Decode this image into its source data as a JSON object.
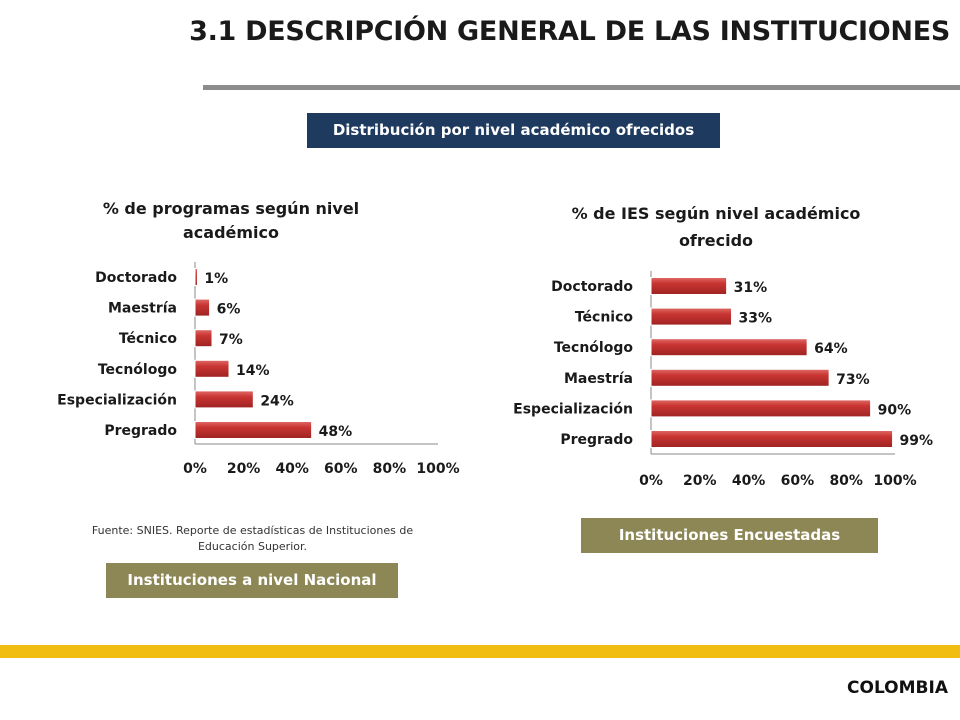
{
  "page": {
    "title": "3.1 DESCRIPCIÓN GENERAL DE LAS INSTITUCIONES",
    "section_banner": "Distribución por nivel académico ofrecidos",
    "source_note": "Fuente: SNIES. Reporte de estadísticas de Instituciones de Educación Superior.",
    "left_banner": "Instituciones a nivel Nacional",
    "right_banner": "Instituciones Encuestadas",
    "footer_label": "COLOMBIA"
  },
  "colors": {
    "title_rule": "#8c8c8c",
    "navy_banner": "#1f3a5f",
    "olive_banner": "#8d8756",
    "bar": "#c0302e",
    "footer_stripe": "#f0bd10"
  },
  "chart_data": [
    {
      "type": "bar",
      "orientation": "horizontal",
      "title": "% de programas según nivel académico",
      "title_lines": [
        "% de programas según nivel",
        "académico"
      ],
      "categories": [
        "Doctorado",
        "Maestría",
        "Técnico",
        "Tecnólogo",
        "Especialización",
        "Pregrado"
      ],
      "values": [
        1,
        6,
        7,
        14,
        24,
        48
      ],
      "value_labels": [
        "1%",
        "6%",
        "7%",
        "14%",
        "24%",
        "48%"
      ],
      "xlim": [
        0,
        100
      ],
      "xticks": [
        "0%",
        "20%",
        "40%",
        "60%",
        "80%",
        "100%"
      ],
      "grid": false,
      "legend": "none"
    },
    {
      "type": "bar",
      "orientation": "horizontal",
      "title": "% de IES según nivel académico ofrecido",
      "title_lines": [
        "% de IES según nivel académico",
        "ofrecido"
      ],
      "categories": [
        "Doctorado",
        "Técnico",
        "Tecnólogo",
        "Maestría",
        "Especialización",
        "Pregrado"
      ],
      "values": [
        31,
        33,
        64,
        73,
        90,
        99
      ],
      "value_labels": [
        "31%",
        "33%",
        "64%",
        "73%",
        "90%",
        "99%"
      ],
      "xlim": [
        0,
        100
      ],
      "xticks": [
        "0%",
        "20%",
        "40%",
        "60%",
        "80%",
        "100%"
      ],
      "grid": false,
      "legend": "none"
    }
  ]
}
